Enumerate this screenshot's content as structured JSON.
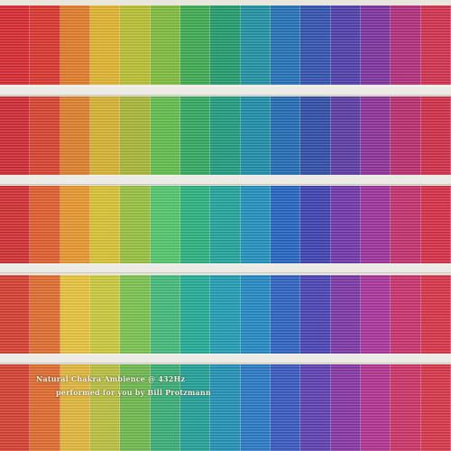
{
  "album": {
    "title": "Natural Chakra Ambience @ 432Hz",
    "performer_line": "performed for you by Bill Protzmann"
  },
  "palette": {
    "rows": [
      [
        "#d7262d",
        "#d9322a",
        "#e07a25",
        "#e0b32c",
        "#b8bf2f",
        "#7cbb3a",
        "#3aa84e",
        "#1f9a6c",
        "#1c8fa1",
        "#1f6fb5",
        "#2f4fae",
        "#4d3aa8",
        "#7b2e9c",
        "#b02a7a",
        "#d12d4a"
      ],
      [
        "#cf2630",
        "#d8402b",
        "#dd7d27",
        "#d6b12e",
        "#a7b533",
        "#5fbd4a",
        "#2fa75e",
        "#1b9a7c",
        "#1a8ba6",
        "#1e68b2",
        "#2c4aa6",
        "#5837a2",
        "#8b2d95",
        "#b8296c",
        "#cf2a44"
      ],
      [
        "#d02b2f",
        "#e05a2a",
        "#e8952a",
        "#d8c231",
        "#96c03c",
        "#4fc56a",
        "#27b07c",
        "#1ea29a",
        "#1d8ebc",
        "#2061c0",
        "#3a3db0",
        "#6e32a8",
        "#9c2f9a",
        "#c22c6c",
        "#d62b45"
      ],
      [
        "#d63a2d",
        "#e06a2b",
        "#e8c23a",
        "#c9c93a",
        "#79c24d",
        "#3fb977",
        "#1faa94",
        "#1d9bb2",
        "#1f86c4",
        "#2a60c0",
        "#4640b2",
        "#7a33a4",
        "#a9309a",
        "#c82e6a",
        "#d73044"
      ],
      [
        "#d43c2e",
        "#e0692b",
        "#e2b637",
        "#b9bf3b",
        "#6cb84b",
        "#35ad74",
        "#1d9f95",
        "#1e8fb5",
        "#2576c4",
        "#3455be",
        "#5a3bb0",
        "#8532a2",
        "#b02f8f",
        "#cb2f64",
        "#d63245"
      ]
    ]
  }
}
